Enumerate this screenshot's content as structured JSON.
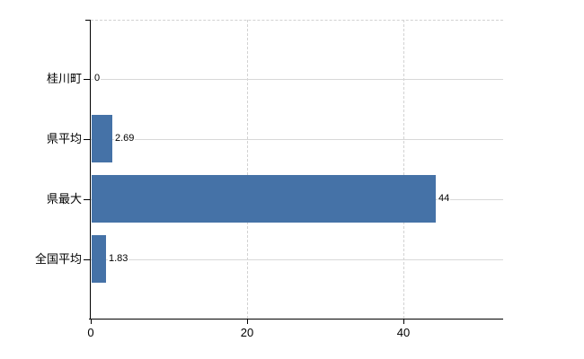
{
  "chart_data": {
    "type": "bar",
    "orientation": "horizontal",
    "title": "",
    "xlabel": "",
    "ylabel": "",
    "categories": [
      "桂川町",
      "県平均",
      "県最大",
      "全国平均"
    ],
    "values": [
      0,
      2.69,
      44,
      1.83
    ],
    "value_labels": [
      "0",
      "2.69",
      "44",
      "1.83"
    ],
    "xlim": [
      0,
      52.8
    ],
    "x_ticks": [
      0,
      20,
      40
    ],
    "x_tick_labels": [
      "0",
      "20",
      "40"
    ],
    "grid": true,
    "legend": false,
    "colors": {
      "bar": "#4572a7",
      "category_gridline": "#d8d8d8",
      "dashed_gridline": "#d2d2d2",
      "axis": "#000000",
      "text": "#000000",
      "background": "#ffffff"
    }
  }
}
